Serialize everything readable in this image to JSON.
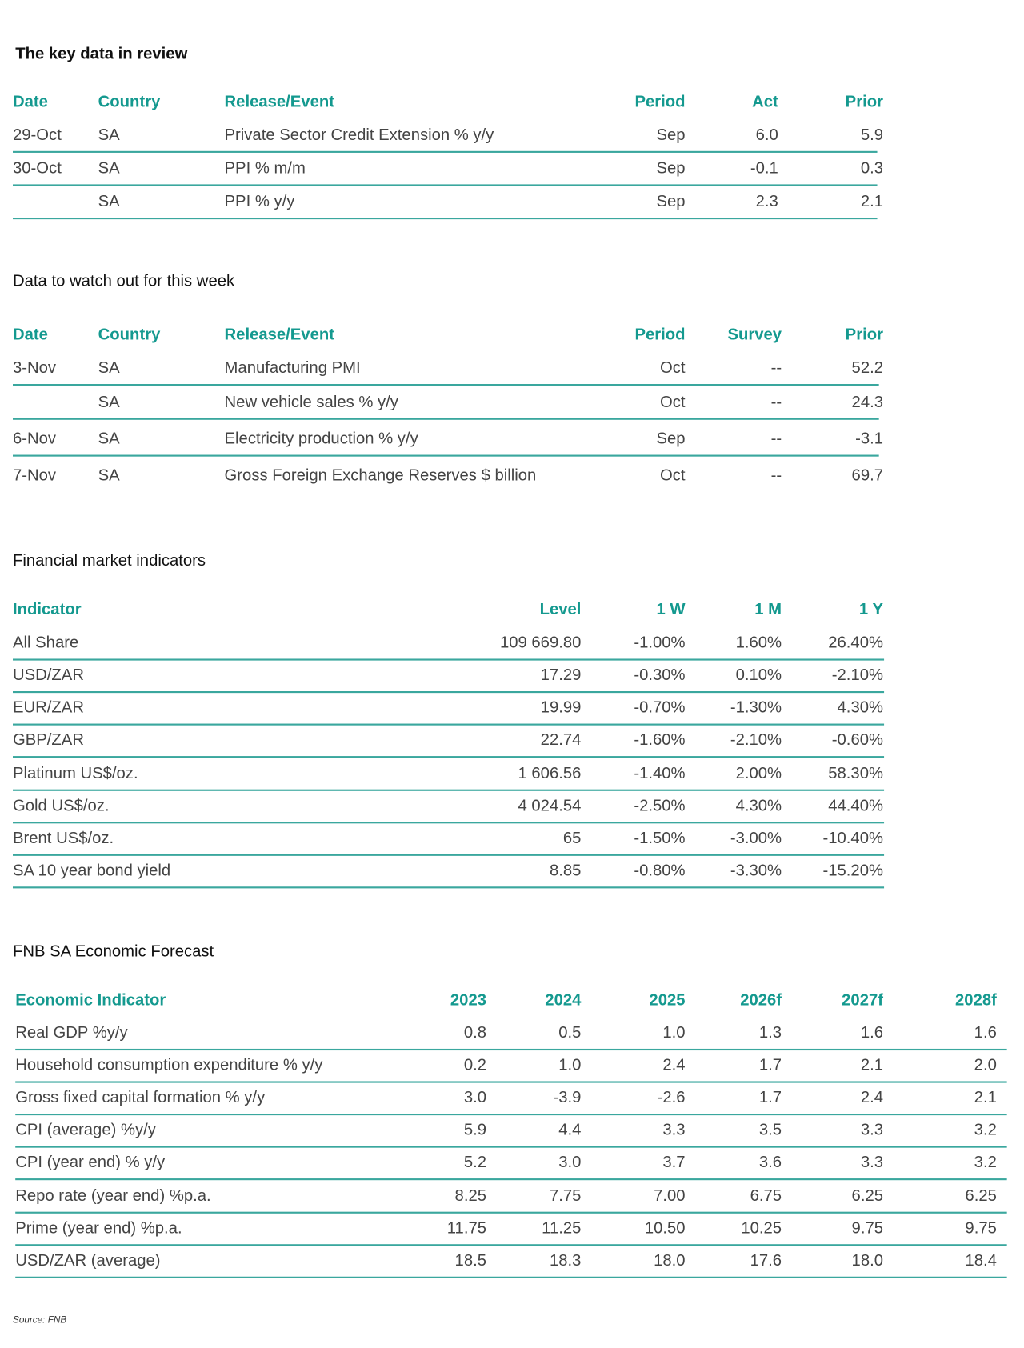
{
  "sections": [
    {
      "title": "The key data in review",
      "columns": [
        "Date",
        "Country",
        "Release/Event",
        "Period",
        "Act",
        "Prior"
      ],
      "rows": [
        [
          "29-Oct",
          "SA",
          "Private Sector Credit Extension % y/y",
          "Sep",
          "6.0",
          "5.9"
        ],
        [
          "30-Oct",
          "SA",
          "PPI % m/m",
          "Sep",
          "-0.1",
          "0.3"
        ],
        [
          null,
          "SA",
          "PPI % y/y",
          "Sep",
          "2.3",
          "2.1"
        ]
      ]
    },
    {
      "title": "Data to watch out for this week",
      "columns": [
        "Date",
        "Country",
        "Release/Event",
        "Period",
        "Survey",
        "Prior"
      ],
      "rows": [
        [
          "3-Nov",
          "SA",
          "Manufacturing PMI",
          "Oct",
          "--",
          "52.2"
        ],
        [
          null,
          "SA",
          "New vehicle sales % y/y",
          "Oct",
          "--",
          "24.3"
        ],
        [
          "6-Nov",
          "SA",
          "Electricity production % y/y",
          "Sep",
          "--",
          "-3.1"
        ],
        [
          "7-Nov",
          "SA",
          "Gross Foreign Exchange Reserves $ billion",
          "Oct",
          "--",
          "69.7"
        ]
      ]
    },
    {
      "title": "Financial market indicators",
      "columns": [
        "Indicator",
        "Level",
        "1 W",
        "1 M",
        "1 Y"
      ],
      "rows": [
        [
          "All Share",
          "109 669.80",
          "-1.00%",
          "1.60%",
          "26.40%"
        ],
        [
          "USD/ZAR",
          "17.29",
          "-0.30%",
          "0.10%",
          "-2.10%"
        ],
        [
          "EUR/ZAR",
          "19.99",
          "-0.70%",
          "-1.30%",
          "4.30%"
        ],
        [
          "GBP/ZAR",
          "22.74",
          "-1.60%",
          "-2.10%",
          "-0.60%"
        ],
        [
          "Platinum US$/oz.",
          "1 606.56",
          "-1.40%",
          "2.00%",
          "58.30%"
        ],
        [
          "Gold US$/oz.",
          "4 024.54",
          "-2.50%",
          "4.30%",
          "44.40%"
        ],
        [
          "Brent US$/oz.",
          "65",
          "-1.50%",
          "-3.00%",
          "-10.40%"
        ],
        [
          "SA 10 year bond yield",
          "8.85",
          "-0.80%",
          "-3.30%",
          "-15.20%"
        ]
      ]
    },
    {
      "title": "FNB SA Economic Forecast",
      "columns": [
        "Economic Indicator",
        "2023",
        "2024",
        "2025",
        "2026f",
        "2027f",
        "2028f"
      ],
      "rows": [
        [
          "Real GDP %y/y",
          "0.8",
          "0.5",
          "1.0",
          "1.3",
          "1.6",
          "1.6"
        ],
        [
          "Household consumption expenditure % y/y",
          "0.2",
          "1.0",
          "2.4",
          "1.7",
          "2.1",
          "2.0"
        ],
        [
          "Gross fixed capital formation % y/y",
          "3.0",
          "-3.9",
          "-2.6",
          "1.7",
          "2.4",
          "2.1"
        ],
        [
          "CPI (average) %y/y",
          "5.9",
          "4.4",
          "3.3",
          "3.5",
          "3.3",
          "3.2"
        ],
        [
          "CPI (year end) % y/y",
          "5.2",
          "3.0",
          "3.7",
          "3.6",
          "3.3",
          "3.2"
        ],
        [
          "Repo rate (year end) %p.a.",
          "8.25",
          "7.75",
          "7.00",
          "6.75",
          "6.25",
          "6.25"
        ],
        [
          "Prime (year end) %p.a.",
          "11.75",
          "11.25",
          "10.50",
          "10.25",
          "9.75",
          "9.75"
        ],
        [
          "USD/ZAR (average)",
          "18.5",
          "18.3",
          "18.0",
          "17.6",
          "18.0",
          "18.4"
        ]
      ]
    }
  ],
  "source": "Source: FNB"
}
